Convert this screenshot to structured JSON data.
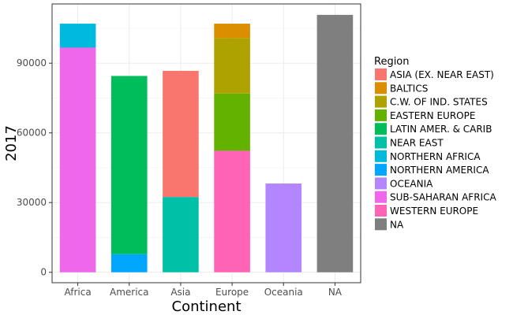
{
  "chart_data": {
    "type": "bar",
    "stacked": true,
    "xlabel": "Continent",
    "ylabel": "2017",
    "categories": [
      "Africa",
      "America",
      "Asia",
      "Europe",
      "Oceania",
      "NA"
    ],
    "ylim": [
      -4500,
      115500
    ],
    "yticks": [
      0,
      30000,
      60000,
      90000
    ],
    "ytick_labels": [
      "0",
      "30000",
      "60000",
      "90000"
    ],
    "grid": true,
    "legend": {
      "title": "Region",
      "position": "right",
      "entries": [
        {
          "name": "ASIA (EX. NEAR EAST)",
          "color": "#F8766D"
        },
        {
          "name": "BALTICS",
          "color": "#DB8E00"
        },
        {
          "name": "C.W. OF IND. STATES",
          "color": "#AEA200"
        },
        {
          "name": "EASTERN EUROPE",
          "color": "#64B200"
        },
        {
          "name": "LATIN AMER. & CARIB",
          "color": "#00BD5C"
        },
        {
          "name": "NEAR EAST",
          "color": "#00C1A7"
        },
        {
          "name": "NORTHERN AFRICA",
          "color": "#00BADE"
        },
        {
          "name": "NORTHERN AMERICA",
          "color": "#00A6FF"
        },
        {
          "name": "OCEANIA",
          "color": "#B385FF"
        },
        {
          "name": "SUB-SAHARAN AFRICA",
          "color": "#EF67EB"
        },
        {
          "name": "WESTERN EUROPE",
          "color": "#FF63B6"
        },
        {
          "name": "NA",
          "color": "#7F7F7F"
        }
      ]
    },
    "bars": [
      {
        "category": "Africa",
        "segments": [
          {
            "region": "SUB-SAHARAN AFRICA",
            "value": 96700
          },
          {
            "region": "NORTHERN AFRICA",
            "value": 10300
          }
        ]
      },
      {
        "category": "America",
        "segments": [
          {
            "region": "NORTHERN AMERICA",
            "value": 7800
          },
          {
            "region": "LATIN AMER. & CARIB",
            "value": 76700
          }
        ]
      },
      {
        "category": "Asia",
        "segments": [
          {
            "region": "NEAR EAST",
            "value": 32400
          },
          {
            "region": "ASIA (EX. NEAR EAST)",
            "value": 54300
          }
        ]
      },
      {
        "category": "Europe",
        "segments": [
          {
            "region": "WESTERN EUROPE",
            "value": 52300
          },
          {
            "region": "EASTERN EUROPE",
            "value": 24600
          },
          {
            "region": "C.W. OF IND. STATES",
            "value": 23900
          },
          {
            "region": "BALTICS",
            "value": 6200
          }
        ]
      },
      {
        "category": "Oceania",
        "segments": [
          {
            "region": "OCEANIA",
            "value": 38200
          }
        ]
      },
      {
        "category": "NA",
        "segments": [
          {
            "region": "NA",
            "value": 110800
          }
        ]
      }
    ]
  }
}
